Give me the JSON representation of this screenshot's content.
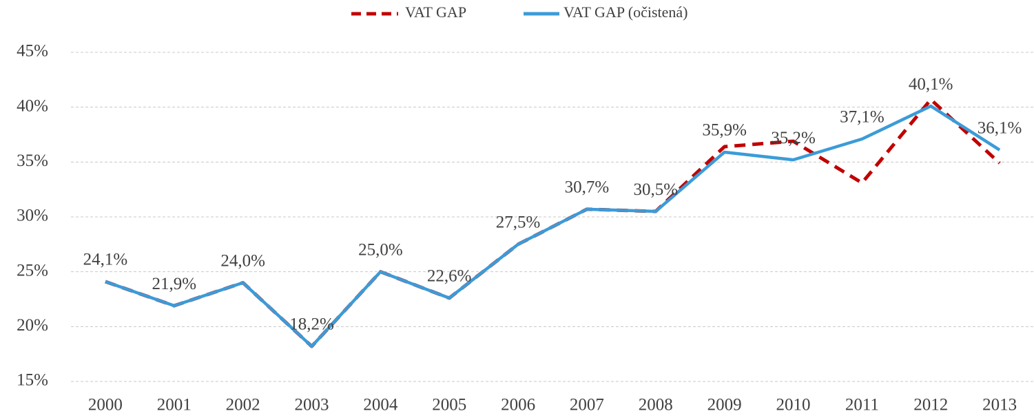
{
  "chart_data": {
    "type": "line",
    "categories": [
      "2000",
      "2001",
      "2002",
      "2003",
      "2004",
      "2005",
      "2006",
      "2007",
      "2008",
      "2009",
      "2010",
      "2011",
      "2012",
      "2013"
    ],
    "series": [
      {
        "name": "VAT GAP",
        "color": "#c00000",
        "dashed": true,
        "values": [
          24.1,
          21.9,
          24.0,
          18.2,
          25.0,
          22.6,
          27.5,
          30.7,
          30.5,
          36.4,
          36.9,
          33.1,
          40.7,
          34.9
        ]
      },
      {
        "name": "VAT GAP (očistená)",
        "color": "#3c9bd8",
        "dashed": false,
        "values": [
          24.1,
          21.9,
          24.0,
          18.2,
          25.0,
          22.6,
          27.5,
          30.7,
          30.5,
          35.9,
          35.2,
          37.1,
          40.1,
          36.1
        ],
        "value_labels": [
          "24,1%",
          "21,9%",
          "24,0%",
          "18,2%",
          "25,0%",
          "22,6%",
          "27,5%",
          "30,7%",
          "30,5%",
          "35,9%",
          "35,2%",
          "37,1%",
          "40,1%",
          "36,1%"
        ]
      }
    ],
    "ylim": [
      15,
      45
    ],
    "yticks": [
      {
        "value": 15,
        "label": "15%"
      },
      {
        "value": 20,
        "label": "20%"
      },
      {
        "value": 25,
        "label": "25%"
      },
      {
        "value": 30,
        "label": "30%"
      },
      {
        "value": 35,
        "label": "35%"
      },
      {
        "value": 40,
        "label": "40%"
      },
      {
        "value": 45,
        "label": "45%"
      }
    ],
    "grid": true,
    "legend": "top"
  }
}
